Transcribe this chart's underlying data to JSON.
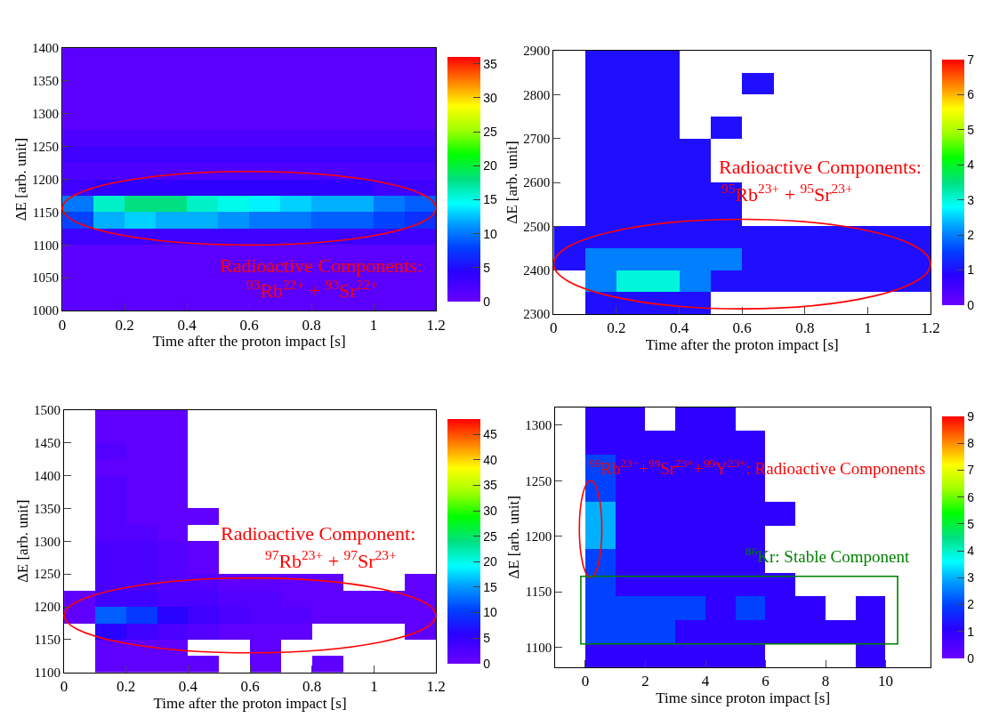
{
  "chart_data": [
    {
      "type": "heatmap",
      "xlabel": "Time after the proton impact [s]",
      "ylabel": "ΔE [arb. unit]",
      "xlim": [
        0,
        1.2
      ],
      "xticks": [
        0,
        0.2,
        0.4,
        0.6,
        0.8,
        1,
        1.2
      ],
      "ylim": [
        1000,
        1400
      ],
      "yticks": [
        1000,
        1050,
        1100,
        1150,
        1200,
        1250,
        1300,
        1350,
        1400
      ],
      "clim": [
        0,
        36
      ],
      "cticks": [
        0,
        5,
        10,
        15,
        20,
        25,
        30,
        35
      ],
      "x": [
        0.05,
        0.15,
        0.25,
        0.35,
        0.45,
        0.55,
        0.65,
        0.75,
        0.85,
        0.95,
        1.05,
        1.15
      ],
      "cells": [
        [
          1,
          1,
          1,
          1,
          1,
          1,
          1,
          1,
          1,
          1,
          1,
          1
        ],
        [
          1,
          1,
          1,
          1,
          1,
          1,
          1,
          1,
          1,
          1,
          1,
          1
        ],
        [
          1,
          1,
          1,
          1,
          1,
          1,
          1,
          1,
          1,
          1,
          1,
          1
        ],
        [
          1,
          1,
          1,
          1,
          1,
          1,
          1,
          1,
          1,
          1,
          1,
          1
        ],
        [
          1,
          1,
          1,
          1,
          1,
          1,
          1,
          1,
          1,
          1,
          1,
          1
        ],
        [
          2,
          2,
          2,
          2,
          2,
          2,
          2,
          2,
          2,
          2,
          2,
          2
        ],
        [
          3,
          3,
          3,
          3,
          3,
          3,
          3,
          3,
          3,
          3,
          3,
          3
        ],
        [
          2,
          2,
          2,
          2,
          2,
          2,
          2,
          2,
          2,
          2,
          2,
          2
        ],
        [
          3,
          4,
          4,
          4,
          4,
          4,
          4,
          4,
          4,
          4,
          3,
          3
        ],
        [
          10,
          16,
          18,
          18,
          16,
          15,
          14,
          13,
          12,
          12,
          10,
          9
        ],
        [
          8,
          12,
          13,
          12,
          12,
          11,
          10,
          10,
          9,
          9,
          8,
          7
        ],
        [
          3,
          3,
          3,
          3,
          3,
          3,
          3,
          3,
          3,
          3,
          3,
          3
        ],
        [
          1,
          1,
          1,
          1,
          1,
          1,
          1,
          1,
          1,
          1,
          1,
          1
        ],
        [
          1,
          1,
          1,
          1,
          1,
          1,
          1,
          1,
          1,
          1,
          1,
          1
        ],
        [
          1,
          1,
          1,
          1,
          1,
          1,
          1,
          1,
          1,
          1,
          1,
          1
        ],
        [
          1,
          1,
          1,
          1,
          1,
          1,
          1,
          1,
          1,
          1,
          1,
          1
        ]
      ],
      "annotations": [
        "Radioactive Components:",
        "$^{93}$Rb$^{22+}$ + $^{93}$Sr$^{22+}$"
      ]
    },
    {
      "type": "heatmap",
      "xlabel": "Time after the proton impact [s]",
      "ylabel": "ΔE [arb. unit]",
      "xlim": [
        0,
        1.2
      ],
      "xticks": [
        0,
        0.2,
        0.4,
        0.6,
        0.8,
        1,
        1.2
      ],
      "ylim": [
        2300,
        2900
      ],
      "yticks": [
        2300,
        2400,
        2500,
        2600,
        2700,
        2800,
        2900
      ],
      "clim": [
        0,
        7
      ],
      "cticks": [
        0,
        1,
        2,
        3,
        4,
        5,
        6,
        7
      ],
      "x": [
        0.05,
        0.15,
        0.25,
        0.35,
        0.45,
        0.55,
        0.65,
        0.75,
        0.85,
        0.95,
        1.05,
        1.15
      ],
      "cells": [
        [
          null,
          1,
          1,
          1,
          null,
          null,
          null,
          null,
          null,
          null,
          null,
          null
        ],
        [
          null,
          1,
          1,
          1,
          null,
          null,
          1,
          null,
          null,
          null,
          null,
          null
        ],
        [
          null,
          1,
          1,
          1,
          null,
          null,
          null,
          null,
          null,
          null,
          null,
          null
        ],
        [
          null,
          1,
          1,
          1,
          null,
          1,
          null,
          null,
          null,
          null,
          null,
          null
        ],
        [
          null,
          1,
          1,
          1,
          1,
          null,
          null,
          null,
          null,
          null,
          null,
          null
        ],
        [
          null,
          1,
          1,
          1,
          1,
          null,
          null,
          null,
          null,
          null,
          null,
          null
        ],
        [
          null,
          1,
          1,
          1,
          1,
          1,
          null,
          null,
          null,
          null,
          null,
          null
        ],
        [
          null,
          1,
          1,
          1,
          1,
          1,
          null,
          null,
          null,
          null,
          null,
          null
        ],
        [
          1,
          1,
          1,
          1,
          1,
          1,
          1,
          1,
          1,
          1,
          1,
          1
        ],
        [
          1,
          2,
          2,
          2,
          2,
          2,
          1,
          1,
          1,
          1,
          1,
          1
        ],
        [
          null,
          2,
          3,
          3,
          2,
          1,
          1,
          1,
          1,
          1,
          1,
          1
        ],
        [
          null,
          1,
          1,
          1,
          1,
          null,
          null,
          null,
          null,
          null,
          null,
          null
        ]
      ],
      "annotations": [
        "Radioactive Components:",
        "$^{95}$Rb$^{23+}$ + $^{95}$Sr$^{23+}$"
      ]
    },
    {
      "type": "heatmap",
      "xlabel": "Time after the proton impact [s]",
      "ylabel": "ΔE [arb. unit]",
      "xlim": [
        0,
        1.2
      ],
      "xticks": [
        0,
        0.2,
        0.4,
        0.6,
        0.8,
        1,
        1.2
      ],
      "ylim": [
        1100,
        1500
      ],
      "yticks": [
        1100,
        1150,
        1200,
        1250,
        1300,
        1350,
        1400,
        1450,
        1500
      ],
      "clim": [
        0,
        48
      ],
      "cticks": [
        0,
        5,
        10,
        15,
        20,
        25,
        30,
        35,
        40,
        45
      ],
      "x": [
        0.05,
        0.15,
        0.25,
        0.35,
        0.45,
        0.55,
        0.65,
        0.75,
        0.85,
        0.95,
        1.05,
        1.15
      ],
      "cells": [
        [
          null,
          1,
          1,
          1,
          null,
          null,
          null,
          null,
          null,
          null,
          null,
          null
        ],
        [
          null,
          1,
          1,
          1,
          null,
          null,
          null,
          null,
          null,
          null,
          null,
          null
        ],
        [
          null,
          2,
          1,
          1,
          null,
          null,
          null,
          null,
          null,
          null,
          null,
          null
        ],
        [
          null,
          1,
          1,
          1,
          null,
          null,
          null,
          null,
          null,
          null,
          null,
          null
        ],
        [
          null,
          2,
          1,
          1,
          null,
          null,
          null,
          null,
          null,
          null,
          null,
          null
        ],
        [
          null,
          2,
          1,
          1,
          null,
          null,
          null,
          null,
          null,
          null,
          null,
          null
        ],
        [
          null,
          2,
          1,
          1,
          1,
          null,
          null,
          null,
          null,
          null,
          null,
          null
        ],
        [
          null,
          2,
          2,
          1,
          null,
          null,
          null,
          null,
          null,
          null,
          null,
          null
        ],
        [
          null,
          3,
          3,
          2,
          1,
          null,
          null,
          null,
          null,
          null,
          null,
          null
        ],
        [
          null,
          3,
          3,
          2,
          1,
          null,
          null,
          null,
          null,
          null,
          null,
          null
        ],
        [
          null,
          3,
          3,
          2,
          2,
          1,
          1,
          1,
          1,
          null,
          null,
          1
        ],
        [
          1,
          4,
          4,
          3,
          3,
          2,
          2,
          1,
          1,
          1,
          1,
          1
        ],
        [
          1,
          12,
          10,
          6,
          4,
          3,
          2,
          2,
          1,
          1,
          1,
          1
        ],
        [
          null,
          6,
          4,
          3,
          2,
          1,
          1,
          1,
          null,
          null,
          null,
          1
        ],
        [
          null,
          1,
          1,
          1,
          null,
          null,
          1,
          null,
          null,
          null,
          null,
          null
        ],
        [
          null,
          1,
          1,
          1,
          1,
          null,
          1,
          null,
          1,
          null,
          null,
          null
        ]
      ],
      "annotations": [
        "Radioactive Component:",
        "$^{97}$Rb$^{23+}$ + $^{97}$Sr$^{23+}$"
      ]
    },
    {
      "type": "heatmap",
      "xlabel": "Time since proton impact [s]",
      "ylabel": "ΔE [arb. unit]",
      "xlim": [
        -1,
        11.5
      ],
      "xticks": [
        0,
        2,
        4,
        6,
        8,
        10
      ],
      "ylim": [
        1082,
        1316
      ],
      "yticks": [
        1100,
        1150,
        1200,
        1250,
        1300
      ],
      "clim": [
        0,
        9
      ],
      "cticks": [
        0,
        1,
        2,
        3,
        4,
        5,
        6,
        7,
        8,
        9
      ],
      "x": [
        0.5,
        1.5,
        2.5,
        3.5,
        4.5,
        5.5,
        6.5,
        7.5,
        8.5,
        9.5,
        10.5
      ],
      "cells": [
        [
          1,
          1,
          null,
          1,
          1,
          null,
          null,
          null,
          null,
          null,
          null
        ],
        [
          1,
          1,
          1,
          1,
          1,
          1,
          null,
          null,
          null,
          null,
          null
        ],
        [
          2,
          1,
          1,
          1,
          1,
          1,
          null,
          null,
          null,
          null,
          null
        ],
        [
          2,
          1,
          1,
          1,
          1,
          1,
          null,
          null,
          null,
          null,
          null
        ],
        [
          3,
          1,
          1,
          1,
          1,
          1,
          1,
          null,
          null,
          null,
          null
        ],
        [
          3,
          1,
          1,
          1,
          1,
          1,
          null,
          null,
          null,
          null,
          null
        ],
        [
          2,
          1,
          1,
          1,
          1,
          1,
          null,
          null,
          null,
          null,
          null
        ],
        [
          2,
          1,
          1,
          1,
          1,
          1,
          1,
          null,
          null,
          null,
          null
        ],
        [
          2,
          2,
          2,
          2,
          1,
          2,
          1,
          1,
          null,
          1,
          null
        ],
        [
          2,
          2,
          2,
          1,
          1,
          1,
          1,
          1,
          1,
          1,
          null
        ],
        [
          1,
          1,
          1,
          1,
          1,
          1,
          null,
          null,
          null,
          1,
          null
        ]
      ],
      "annotations": [
        "$^{99}$Rb$^{23+}$+$^{99}$Sr$^{23+}$+$^{99}$Y$^{23+}$: Radioactive Components",
        "$^{86}$Kr: Stable Component"
      ]
    }
  ]
}
